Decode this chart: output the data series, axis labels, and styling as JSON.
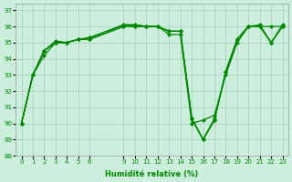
{
  "xlabel": "Humidité relative (%)",
  "bg_color": "#cceedd",
  "grid_color": "#aaccbb",
  "line_color": "#008800",
  "ylim": [
    88,
    97.4
  ],
  "yticks": [
    88,
    89,
    90,
    91,
    92,
    93,
    94,
    95,
    96,
    97
  ],
  "xtick_positions": [
    0,
    1,
    2,
    3,
    4,
    5,
    6,
    9,
    10,
    11,
    12,
    13,
    14,
    15,
    16,
    17,
    18,
    19,
    20,
    21,
    22,
    23
  ],
  "xtick_labels": [
    "0",
    "1",
    "2",
    "3",
    "4",
    "5",
    "6",
    "9",
    "10",
    "11",
    "12",
    "13",
    "14",
    "15",
    "16",
    "17",
    "18",
    "19",
    "20",
    "21",
    "22",
    "23"
  ],
  "xlim": [
    -0.5,
    23.5
  ],
  "series": [
    {
      "x": [
        0,
        1,
        2,
        3,
        4,
        5,
        6,
        9,
        10,
        11,
        12,
        13,
        14,
        15,
        16,
        17,
        18,
        19,
        20,
        21,
        22,
        23
      ],
      "y": [
        90,
        93,
        94.2,
        95,
        95,
        95.2,
        95.2,
        96,
        96,
        96,
        96,
        95.5,
        95.5,
        90,
        90.2,
        90.5,
        93,
        95,
        96,
        96,
        96,
        96
      ]
    },
    {
      "x": [
        0,
        1,
        2,
        3,
        4,
        5,
        6,
        9,
        10,
        11,
        12,
        13,
        14,
        15,
        16,
        17,
        18,
        19,
        20,
        21,
        22,
        23
      ],
      "y": [
        90,
        93,
        94.5,
        95,
        95,
        95.2,
        95.2,
        96,
        96,
        96,
        96,
        95.7,
        95.7,
        90.3,
        89,
        90.2,
        93.2,
        95.2,
        96,
        96,
        95,
        96
      ]
    },
    {
      "x": [
        0,
        1,
        2,
        3,
        4,
        5,
        6,
        9,
        10,
        11,
        12,
        13,
        14,
        15,
        16,
        17,
        18,
        19,
        20,
        21,
        22,
        23
      ],
      "y": [
        90,
        93,
        94.5,
        95,
        95,
        95.2,
        95.3,
        96.1,
        96.1,
        96,
        96,
        95.7,
        95.7,
        90.3,
        89,
        90.2,
        93.2,
        95.2,
        96,
        96,
        95,
        96
      ]
    },
    {
      "x": [
        0,
        1,
        2,
        3,
        4,
        5,
        6,
        9,
        10,
        11,
        12,
        13,
        14,
        15,
        16,
        17,
        18,
        19,
        20,
        21,
        22,
        23
      ],
      "y": [
        90,
        93,
        94.5,
        95.1,
        95,
        95.2,
        95.3,
        96.1,
        96.1,
        96,
        96,
        95.7,
        95.7,
        90.3,
        89,
        90.3,
        93.2,
        95.2,
        96,
        96.1,
        95,
        96.1
      ]
    }
  ],
  "markersize": 2.0,
  "linewidth": 0.9,
  "xlabel_fontsize": 6.0,
  "tick_fontsize": 5.0
}
